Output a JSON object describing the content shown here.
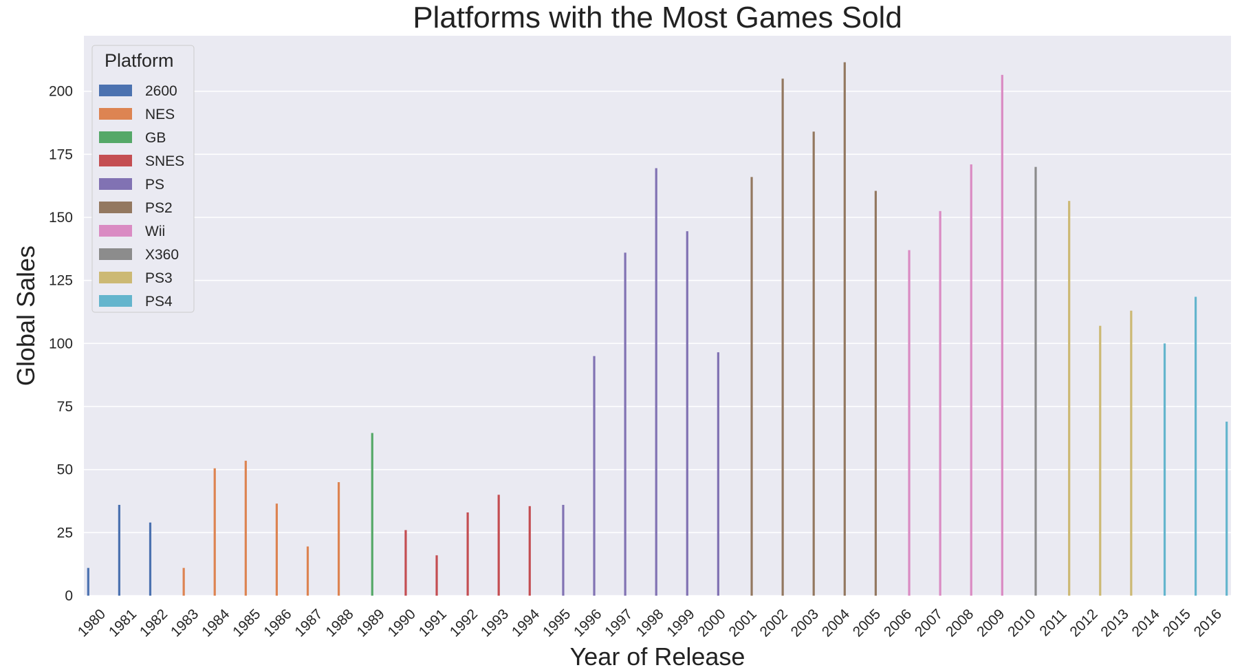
{
  "chart_data": {
    "type": "bar",
    "title": "Platforms with the Most Games Sold",
    "xlabel": "Year of Release",
    "ylabel": "Global Sales",
    "ylim": [
      0,
      222
    ],
    "yticks": [
      0,
      25,
      50,
      75,
      100,
      125,
      150,
      175,
      200
    ],
    "grid": true,
    "legend_title": "Platform",
    "legend_position": "top-left",
    "categories": [
      "1980",
      "1981",
      "1982",
      "1983",
      "1984",
      "1985",
      "1986",
      "1987",
      "1988",
      "1989",
      "1990",
      "1991",
      "1992",
      "1993",
      "1994",
      "1995",
      "1996",
      "1997",
      "1998",
      "1999",
      "2000",
      "2001",
      "2002",
      "2003",
      "2004",
      "2005",
      "2006",
      "2007",
      "2008",
      "2009",
      "2010",
      "2011",
      "2012",
      "2013",
      "2014",
      "2015",
      "2016"
    ],
    "platforms": [
      {
        "name": "2600",
        "color": "#4c72b0"
      },
      {
        "name": "NES",
        "color": "#dd8452"
      },
      {
        "name": "GB",
        "color": "#55a868"
      },
      {
        "name": "SNES",
        "color": "#c44e52"
      },
      {
        "name": "PS",
        "color": "#8172b3"
      },
      {
        "name": "PS2",
        "color": "#937860"
      },
      {
        "name": "Wii",
        "color": "#da8bc3"
      },
      {
        "name": "X360",
        "color": "#8c8c8c"
      },
      {
        "name": "PS3",
        "color": "#ccb974"
      },
      {
        "name": "PS4",
        "color": "#64b5cd"
      }
    ],
    "bars": [
      {
        "year": "1980",
        "platform": "2600",
        "value": 11
      },
      {
        "year": "1981",
        "platform": "2600",
        "value": 36
      },
      {
        "year": "1982",
        "platform": "2600",
        "value": 29
      },
      {
        "year": "1983",
        "platform": "NES",
        "value": 11
      },
      {
        "year": "1984",
        "platform": "NES",
        "value": 50.5
      },
      {
        "year": "1985",
        "platform": "NES",
        "value": 53.5
      },
      {
        "year": "1986",
        "platform": "NES",
        "value": 36.5
      },
      {
        "year": "1987",
        "platform": "NES",
        "value": 19.5
      },
      {
        "year": "1988",
        "platform": "NES",
        "value": 45
      },
      {
        "year": "1989",
        "platform": "GB",
        "value": 64.5
      },
      {
        "year": "1990",
        "platform": "SNES",
        "value": 26
      },
      {
        "year": "1991",
        "platform": "SNES",
        "value": 16
      },
      {
        "year": "1992",
        "platform": "SNES",
        "value": 33
      },
      {
        "year": "1993",
        "platform": "SNES",
        "value": 40
      },
      {
        "year": "1994",
        "platform": "SNES",
        "value": 35.5
      },
      {
        "year": "1995",
        "platform": "PS",
        "value": 36
      },
      {
        "year": "1996",
        "platform": "PS",
        "value": 95
      },
      {
        "year": "1997",
        "platform": "PS",
        "value": 136
      },
      {
        "year": "1998",
        "platform": "PS",
        "value": 169.5
      },
      {
        "year": "1999",
        "platform": "PS",
        "value": 144.5
      },
      {
        "year": "2000",
        "platform": "PS",
        "value": 96.5
      },
      {
        "year": "2001",
        "platform": "PS2",
        "value": 166
      },
      {
        "year": "2002",
        "platform": "PS2",
        "value": 205
      },
      {
        "year": "2003",
        "platform": "PS2",
        "value": 184
      },
      {
        "year": "2004",
        "platform": "PS2",
        "value": 211.5
      },
      {
        "year": "2005",
        "platform": "PS2",
        "value": 160.5
      },
      {
        "year": "2006",
        "platform": "Wii",
        "value": 137
      },
      {
        "year": "2007",
        "platform": "Wii",
        "value": 152.5
      },
      {
        "year": "2008",
        "platform": "Wii",
        "value": 171
      },
      {
        "year": "2009",
        "platform": "Wii",
        "value": 206.5
      },
      {
        "year": "2010",
        "platform": "X360",
        "value": 170
      },
      {
        "year": "2011",
        "platform": "PS3",
        "value": 156.5
      },
      {
        "year": "2012",
        "platform": "PS3",
        "value": 107
      },
      {
        "year": "2013",
        "platform": "PS3",
        "value": 113
      },
      {
        "year": "2014",
        "platform": "PS4",
        "value": 100
      },
      {
        "year": "2015",
        "platform": "PS4",
        "value": 118.5
      },
      {
        "year": "2016",
        "platform": "PS4",
        "value": 69
      }
    ]
  }
}
